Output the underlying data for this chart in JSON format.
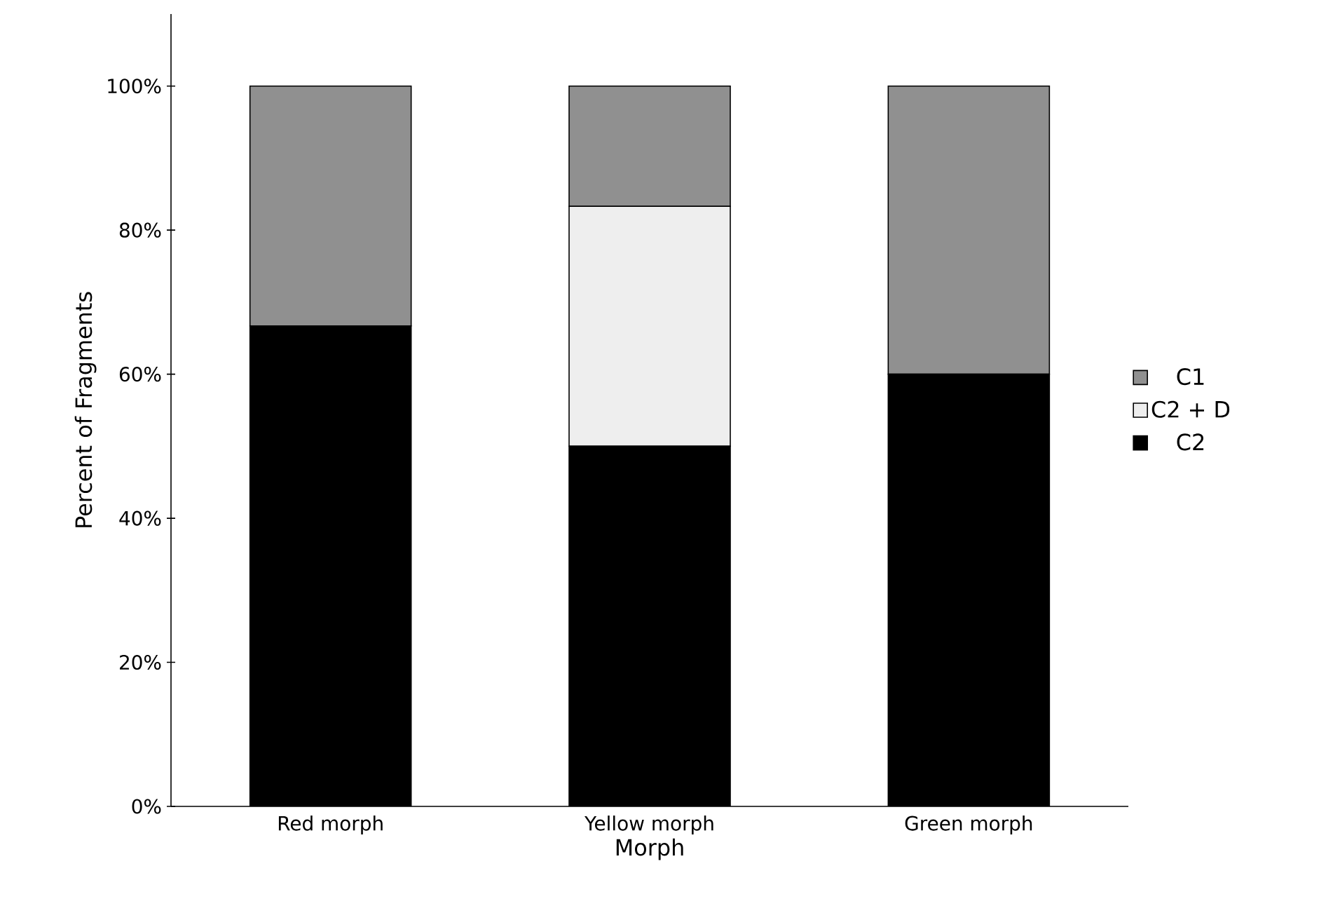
{
  "chart_data": {
    "type": "bar",
    "stacked": true,
    "xlabel": "Morph",
    "ylabel": "Percent of Fragments",
    "categories": [
      "Red morph",
      "Yellow morph",
      "Green morph"
    ],
    "series": [
      {
        "name": "C2",
        "color": "#000000",
        "values": [
          66.7,
          50,
          60
        ]
      },
      {
        "name": "C2 + D",
        "color": "#eeeeee",
        "values": [
          null,
          33.3,
          null
        ]
      },
      {
        "name": "C1",
        "color": "#909090",
        "values": [
          33.3,
          16.7,
          40
        ]
      }
    ],
    "ylim": [
      0,
      110
    ],
    "yticks": [
      {
        "value": 0,
        "label": "0%"
      },
      {
        "value": 20,
        "label": "20%"
      },
      {
        "value": 40,
        "label": "40%"
      },
      {
        "value": 60,
        "label": "60%"
      },
      {
        "value": 80,
        "label": "80%"
      },
      {
        "value": 100,
        "label": "100%"
      }
    ],
    "legend": "right",
    "grid": false
  }
}
